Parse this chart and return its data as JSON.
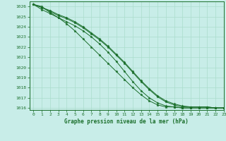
{
  "title": "Graphe pression niveau de la mer (hPa)",
  "xlim": [
    -0.5,
    23
  ],
  "ylim": [
    1015.8,
    1026.5
  ],
  "yticks": [
    1016,
    1017,
    1018,
    1019,
    1020,
    1021,
    1022,
    1023,
    1024,
    1025,
    1026
  ],
  "xticks": [
    0,
    1,
    2,
    3,
    4,
    5,
    6,
    7,
    8,
    9,
    10,
    11,
    12,
    13,
    14,
    15,
    16,
    17,
    18,
    19,
    20,
    21,
    22,
    23
  ],
  "bg_color": "#c8ede8",
  "grid_color": "#aaddcc",
  "line_color": "#1a6e2a",
  "line1": [
    1026.2,
    1025.7,
    1025.3,
    1024.9,
    1024.5,
    1024.1,
    1023.6,
    1023.0,
    1022.3,
    1021.5,
    1020.6,
    1019.6,
    1018.6,
    1017.7,
    1017.0,
    1016.5,
    1016.2,
    1016.1,
    1016.0,
    1016.0,
    1016.0,
    1016.0,
    1016.0,
    1016.0
  ],
  "line2": [
    1026.2,
    1025.9,
    1025.5,
    1025.1,
    1024.8,
    1024.4,
    1023.9,
    1023.3,
    1022.7,
    1022.0,
    1021.2,
    1020.4,
    1019.5,
    1018.6,
    1017.8,
    1017.1,
    1016.6,
    1016.3,
    1016.1,
    1016.1,
    1016.1,
    1016.1,
    1016.0,
    1016.0
  ],
  "line3": [
    1026.2,
    1026.0,
    1025.4,
    1024.9,
    1024.3,
    1023.6,
    1022.8,
    1022.0,
    1021.2,
    1020.4,
    1019.6,
    1018.8,
    1018.0,
    1017.3,
    1016.7,
    1016.3,
    1016.1,
    1016.1,
    1016.0,
    1016.0,
    1016.0,
    1016.0,
    1016.0,
    1016.0
  ],
  "line4": [
    1026.2,
    1025.9,
    1025.6,
    1025.2,
    1024.9,
    1024.5,
    1024.0,
    1023.4,
    1022.8,
    1022.1,
    1021.3,
    1020.5,
    1019.6,
    1018.7,
    1017.9,
    1017.2,
    1016.7,
    1016.4,
    1016.2,
    1016.1,
    1016.1,
    1016.1,
    1016.0,
    1016.0
  ]
}
